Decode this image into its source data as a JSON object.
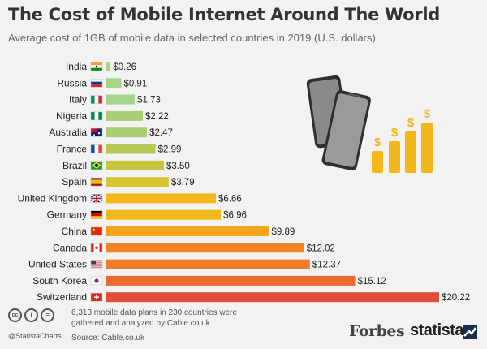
{
  "title": "The Cost of Mobile Internet Around The World",
  "subtitle": "Average cost of 1GB of mobile data in selected countries in 2019 (U.S. dollars)",
  "footer": {
    "note": "6,313 mobile data plans in 230 countries were gathered and analyzed by Cable.co.uk",
    "source": "Source: Cable.co.uk",
    "handle": "@StatistaCharts",
    "forbes": "Forbes",
    "statista": "statista"
  },
  "illustration": {
    "icon": "smartphones-and-rising-coin-bars-icon",
    "coin_symbol": "$"
  },
  "chart_data": {
    "type": "bar",
    "orientation": "horizontal",
    "value_prefix": "$",
    "categories": [
      "India",
      "Russia",
      "Italy",
      "Nigeria",
      "Australia",
      "France",
      "Brazil",
      "Spain",
      "United Kingdom",
      "Germany",
      "China",
      "Canada",
      "United States",
      "South Korea",
      "Switzerland"
    ],
    "values": [
      0.26,
      0.91,
      1.73,
      2.22,
      2.47,
      2.99,
      3.5,
      3.79,
      6.66,
      6.96,
      9.89,
      12.02,
      12.37,
      15.12,
      20.22
    ],
    "value_labels": [
      "$0.26",
      "$0.91",
      "$1.73",
      "$2.22",
      "$2.47",
      "$2.99",
      "$3.50",
      "$3.79",
      "$6.66",
      "$6.96",
      "$9.89",
      "$12.02",
      "$12.37",
      "$15.12",
      "$20.22"
    ],
    "bar_colors": [
      "#a7d48b",
      "#a7d48b",
      "#a7d48b",
      "#a9cf74",
      "#a9cf74",
      "#b8c753",
      "#c8c43c",
      "#d9c531",
      "#f2b81b",
      "#f2b81b",
      "#f4a51a",
      "#f08429",
      "#ef7d2c",
      "#ea6a30",
      "#e24c3a"
    ],
    "flags": [
      "India flag",
      "Russia flag",
      "Italy flag",
      "Nigeria flag",
      "Australia flag",
      "France flag",
      "Brazil flag",
      "Spain flag",
      "United Kingdom flag",
      "Germany flag",
      "China flag",
      "Canada flag",
      "United States flag",
      "South Korea flag",
      "Switzerland flag"
    ],
    "xlim": [
      0,
      20.22
    ],
    "grid": false,
    "legend": "none"
  }
}
